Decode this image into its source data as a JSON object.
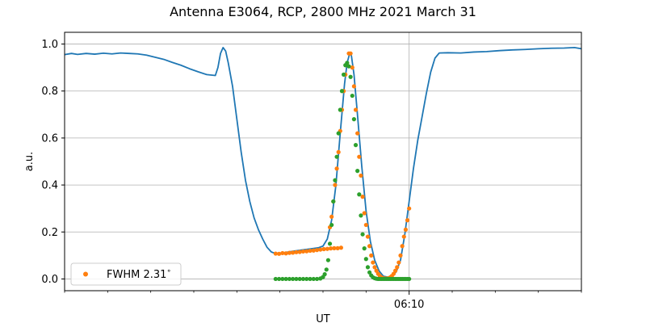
{
  "chart_data": {
    "type": "line",
    "title": "Antenna E3064, RCP, 2800 MHz 2021 March 31",
    "xlabel": "UT",
    "ylabel": "a.u.",
    "ylim": [
      -0.05,
      1.05
    ],
    "xlim": [
      0,
      600
    ],
    "grid": true,
    "y_ticks": [
      0.0,
      0.2,
      0.4,
      0.6,
      0.8,
      1.0
    ],
    "y_tick_labels": [
      "0.0",
      "0.2",
      "0.4",
      "0.6",
      "0.8",
      "1.0"
    ],
    "x_major_ticks": [
      {
        "x": 400,
        "label": "06:10"
      }
    ],
    "x_minor_ticks": [
      0,
      50,
      100,
      150,
      200,
      250,
      300,
      350,
      450,
      500,
      550,
      600
    ],
    "legend": {
      "position": "lower-left",
      "entries": [
        {
          "name": "FWHM 2.31$^\\circ$",
          "display": "FWHM 2.31",
          "superscript": "∘",
          "marker": "dot",
          "color": "#ff7f0e"
        }
      ]
    },
    "colors": {
      "measured": "#1f77b4",
      "fit_orange": "#ff7f0e",
      "fit_green": "#2ca02c",
      "grid": "#b0b0b0"
    },
    "series": [
      {
        "style": "line",
        "color": "#1f77b4",
        "points": [
          [
            0,
            0.955
          ],
          [
            8,
            0.96
          ],
          [
            15,
            0.956
          ],
          [
            25,
            0.96
          ],
          [
            35,
            0.957
          ],
          [
            45,
            0.961
          ],
          [
            55,
            0.958
          ],
          [
            65,
            0.962
          ],
          [
            75,
            0.96
          ],
          [
            85,
            0.958
          ],
          [
            95,
            0.953
          ],
          [
            105,
            0.944
          ],
          [
            115,
            0.935
          ],
          [
            125,
            0.922
          ],
          [
            135,
            0.91
          ],
          [
            145,
            0.895
          ],
          [
            155,
            0.882
          ],
          [
            165,
            0.87
          ],
          [
            175,
            0.866
          ],
          [
            178,
            0.9
          ],
          [
            181,
            0.96
          ],
          [
            184,
            0.985
          ],
          [
            187,
            0.97
          ],
          [
            190,
            0.92
          ],
          [
            195,
            0.82
          ],
          [
            200,
            0.68
          ],
          [
            205,
            0.54
          ],
          [
            210,
            0.42
          ],
          [
            215,
            0.33
          ],
          [
            220,
            0.26
          ],
          [
            225,
            0.21
          ],
          [
            230,
            0.17
          ],
          [
            235,
            0.135
          ],
          [
            240,
            0.115
          ],
          [
            245,
            0.108
          ],
          [
            255,
            0.112
          ],
          [
            265,
            0.118
          ],
          [
            275,
            0.123
          ],
          [
            285,
            0.128
          ],
          [
            295,
            0.133
          ],
          [
            300,
            0.14
          ],
          [
            305,
            0.17
          ],
          [
            310,
            0.25
          ],
          [
            315,
            0.4
          ],
          [
            320,
            0.62
          ],
          [
            325,
            0.83
          ],
          [
            328,
            0.92
          ],
          [
            331,
            0.96
          ],
          [
            333,
            0.95
          ],
          [
            336,
            0.87
          ],
          [
            340,
            0.7
          ],
          [
            345,
            0.48
          ],
          [
            350,
            0.29
          ],
          [
            355,
            0.16
          ],
          [
            360,
            0.08
          ],
          [
            365,
            0.035
          ],
          [
            370,
            0.012
          ],
          [
            375,
            0.008
          ],
          [
            380,
            0.012
          ],
          [
            385,
            0.03
          ],
          [
            390,
            0.08
          ],
          [
            395,
            0.19
          ],
          [
            400,
            0.33
          ],
          [
            405,
            0.47
          ],
          [
            410,
            0.59
          ],
          [
            415,
            0.69
          ],
          [
            420,
            0.79
          ],
          [
            425,
            0.88
          ],
          [
            430,
            0.94
          ],
          [
            435,
            0.962
          ],
          [
            445,
            0.963
          ],
          [
            460,
            0.962
          ],
          [
            475,
            0.966
          ],
          [
            490,
            0.968
          ],
          [
            505,
            0.972
          ],
          [
            520,
            0.975
          ],
          [
            535,
            0.977
          ],
          [
            550,
            0.98
          ],
          [
            565,
            0.982
          ],
          [
            580,
            0.983
          ],
          [
            592,
            0.985
          ],
          [
            600,
            0.98
          ]
        ]
      },
      {
        "style": "dots",
        "color": "#ff7f0e",
        "points": [
          [
            245,
            0.108
          ],
          [
            249,
            0.107
          ],
          [
            253,
            0.11
          ],
          [
            257,
            0.109
          ],
          [
            261,
            0.111
          ],
          [
            265,
            0.112
          ],
          [
            269,
            0.114
          ],
          [
            273,
            0.115
          ],
          [
            277,
            0.117
          ],
          [
            281,
            0.118
          ],
          [
            285,
            0.12
          ],
          [
            289,
            0.121
          ],
          [
            293,
            0.123
          ],
          [
            297,
            0.125
          ],
          [
            301,
            0.127
          ],
          [
            305,
            0.128
          ],
          [
            309,
            0.13
          ],
          [
            313,
            0.131
          ],
          [
            317,
            0.131
          ],
          [
            321,
            0.133
          ],
          [
            308,
            0.22
          ],
          [
            310,
            0.265
          ],
          [
            312,
            0.33
          ],
          [
            314,
            0.4
          ],
          [
            316,
            0.47
          ],
          [
            318,
            0.54
          ],
          [
            320,
            0.63
          ],
          [
            322,
            0.72
          ],
          [
            324,
            0.8
          ],
          [
            326,
            0.87
          ],
          [
            328,
            0.91
          ],
          [
            330,
            0.96
          ],
          [
            332,
            0.96
          ],
          [
            334,
            0.9
          ],
          [
            336,
            0.82
          ],
          [
            338,
            0.72
          ],
          [
            340,
            0.62
          ],
          [
            342,
            0.52
          ],
          [
            344,
            0.44
          ],
          [
            346,
            0.35
          ],
          [
            348,
            0.28
          ],
          [
            350,
            0.23
          ],
          [
            352,
            0.18
          ],
          [
            354,
            0.14
          ],
          [
            356,
            0.1
          ],
          [
            358,
            0.07
          ],
          [
            360,
            0.05
          ],
          [
            362,
            0.035
          ],
          [
            364,
            0.022
          ],
          [
            366,
            0.013
          ],
          [
            368,
            0.007
          ],
          [
            370,
            0.003
          ],
          [
            372,
            0.002
          ],
          [
            374,
            0.002
          ],
          [
            376,
            0.003
          ],
          [
            378,
            0.007
          ],
          [
            380,
            0.013
          ],
          [
            382,
            0.022
          ],
          [
            384,
            0.035
          ],
          [
            386,
            0.05
          ],
          [
            388,
            0.07
          ],
          [
            390,
            0.1
          ],
          [
            392,
            0.14
          ],
          [
            394,
            0.18
          ],
          [
            396,
            0.21
          ],
          [
            398,
            0.25
          ],
          [
            400,
            0.3
          ]
        ]
      },
      {
        "style": "dots",
        "color": "#2ca02c",
        "points": [
          [
            245,
            0.0
          ],
          [
            249,
            0.0
          ],
          [
            253,
            0.0
          ],
          [
            257,
            0.0
          ],
          [
            261,
            0.0
          ],
          [
            265,
            0.0
          ],
          [
            269,
            0.0
          ],
          [
            273,
            0.0
          ],
          [
            277,
            0.0
          ],
          [
            281,
            0.0
          ],
          [
            285,
            0.0
          ],
          [
            289,
            0.0
          ],
          [
            293,
            0.0
          ],
          [
            297,
            0.002
          ],
          [
            300,
            0.008
          ],
          [
            302,
            0.02
          ],
          [
            304,
            0.04
          ],
          [
            306,
            0.08
          ],
          [
            308,
            0.15
          ],
          [
            310,
            0.23
          ],
          [
            312,
            0.33
          ],
          [
            314,
            0.42
          ],
          [
            316,
            0.52
          ],
          [
            318,
            0.62
          ],
          [
            320,
            0.72
          ],
          [
            322,
            0.8
          ],
          [
            324,
            0.87
          ],
          [
            326,
            0.91
          ],
          [
            328,
            0.92
          ],
          [
            330,
            0.905
          ],
          [
            332,
            0.86
          ],
          [
            334,
            0.78
          ],
          [
            336,
            0.68
          ],
          [
            338,
            0.57
          ],
          [
            340,
            0.46
          ],
          [
            342,
            0.36
          ],
          [
            344,
            0.27
          ],
          [
            346,
            0.19
          ],
          [
            348,
            0.13
          ],
          [
            350,
            0.085
          ],
          [
            352,
            0.05
          ],
          [
            354,
            0.028
          ],
          [
            356,
            0.015
          ],
          [
            358,
            0.007
          ],
          [
            360,
            0.003
          ],
          [
            362,
            0.001
          ],
          [
            364,
            0.0
          ],
          [
            366,
            0.0
          ],
          [
            368,
            0.0
          ],
          [
            370,
            0.0
          ],
          [
            372,
            0.0
          ],
          [
            374,
            0.0
          ],
          [
            376,
            0.0
          ],
          [
            378,
            0.0
          ],
          [
            380,
            0.0
          ],
          [
            382,
            0.0
          ],
          [
            384,
            0.0
          ],
          [
            386,
            0.0
          ],
          [
            388,
            0.0
          ],
          [
            390,
            0.0
          ],
          [
            392,
            0.0
          ],
          [
            394,
            0.0
          ],
          [
            396,
            0.0
          ],
          [
            398,
            0.0
          ],
          [
            400,
            0.0
          ]
        ]
      }
    ]
  }
}
